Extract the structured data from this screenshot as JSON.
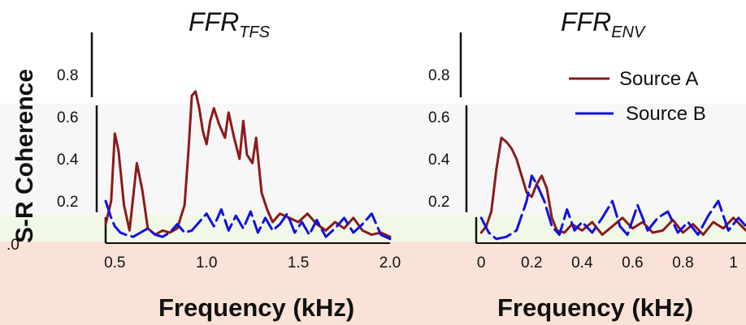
{
  "chart_data": [
    {
      "type": "line",
      "title_main": "FFR",
      "title_sub": "TFS",
      "xlabel": "Frequency (kHz)",
      "ylabel": "S-R Coherence",
      "xlim": [
        0.45,
        2.0
      ],
      "ylim": [
        0.0,
        1.0
      ],
      "x_ticks": [
        "0.5",
        "1.0",
        "1.5",
        "2.0"
      ],
      "x_tick_values": [
        0.5,
        1.0,
        1.5,
        2.0
      ],
      "y_ticks": [
        "0.8",
        "0.6",
        "0.4",
        "0.2"
      ],
      "y_tick_values": [
        0.8,
        0.6,
        0.4,
        0.2
      ],
      "series": [
        {
          "name": "Source A",
          "color": "#8b1a1a",
          "style": "solid",
          "x": [
            0.45,
            0.48,
            0.5,
            0.52,
            0.55,
            0.58,
            0.6,
            0.62,
            0.65,
            0.68,
            0.72,
            0.76,
            0.8,
            0.84,
            0.88,
            0.9,
            0.92,
            0.94,
            0.96,
            0.98,
            1.0,
            1.02,
            1.04,
            1.07,
            1.1,
            1.12,
            1.15,
            1.18,
            1.2,
            1.22,
            1.25,
            1.27,
            1.3,
            1.33,
            1.36,
            1.4,
            1.45,
            1.5,
            1.55,
            1.6,
            1.65,
            1.7,
            1.75,
            1.8,
            1.85,
            1.9,
            1.95,
            2.0
          ],
          "values": [
            0.09,
            0.2,
            0.52,
            0.44,
            0.18,
            0.06,
            0.22,
            0.38,
            0.25,
            0.07,
            0.04,
            0.06,
            0.05,
            0.07,
            0.18,
            0.42,
            0.7,
            0.72,
            0.64,
            0.53,
            0.47,
            0.58,
            0.64,
            0.56,
            0.5,
            0.62,
            0.5,
            0.4,
            0.58,
            0.42,
            0.38,
            0.5,
            0.24,
            0.16,
            0.1,
            0.14,
            0.12,
            0.1,
            0.14,
            0.09,
            0.06,
            0.1,
            0.07,
            0.12,
            0.06,
            0.04,
            0.05,
            0.03
          ]
        },
        {
          "name": "Source B",
          "color": "#1010e0",
          "style": "dashed",
          "x": [
            0.45,
            0.48,
            0.5,
            0.53,
            0.56,
            0.6,
            0.64,
            0.68,
            0.72,
            0.76,
            0.8,
            0.84,
            0.88,
            0.92,
            0.96,
            1.0,
            1.04,
            1.08,
            1.12,
            1.16,
            1.2,
            1.24,
            1.28,
            1.32,
            1.36,
            1.4,
            1.44,
            1.48,
            1.52,
            1.56,
            1.6,
            1.65,
            1.7,
            1.75,
            1.8,
            1.85,
            1.9,
            1.95,
            2.0
          ],
          "values": [
            0.2,
            0.12,
            0.08,
            0.05,
            0.04,
            0.03,
            0.05,
            0.07,
            0.04,
            0.03,
            0.05,
            0.09,
            0.05,
            0.06,
            0.1,
            0.14,
            0.08,
            0.16,
            0.06,
            0.13,
            0.07,
            0.15,
            0.05,
            0.12,
            0.06,
            0.09,
            0.14,
            0.05,
            0.1,
            0.04,
            0.11,
            0.03,
            0.07,
            0.12,
            0.05,
            0.09,
            0.14,
            0.04,
            0.02
          ]
        }
      ]
    },
    {
      "type": "line",
      "title_main": "FFR",
      "title_sub": "ENV",
      "xlabel": "Frequency (kHz)",
      "xlim": [
        -0.02,
        1.05
      ],
      "ylim": [
        0.0,
        1.0
      ],
      "x_ticks": [
        "0",
        "0.2",
        "0.4",
        "0.6",
        "0.8",
        "1"
      ],
      "x_tick_values": [
        0.0,
        0.2,
        0.4,
        0.6,
        0.8,
        1.0
      ],
      "y_ticks": [
        "0.8",
        "0.6",
        "0.4",
        "0.2"
      ],
      "y_tick_values": [
        0.8,
        0.6,
        0.4,
        0.2
      ],
      "series": [
        {
          "name": "Source A",
          "color": "#8b1a1a",
          "style": "solid",
          "x": [
            0.0,
            0.02,
            0.04,
            0.06,
            0.08,
            0.1,
            0.12,
            0.14,
            0.16,
            0.18,
            0.2,
            0.22,
            0.24,
            0.26,
            0.28,
            0.3,
            0.33,
            0.36,
            0.4,
            0.44,
            0.48,
            0.52,
            0.56,
            0.6,
            0.64,
            0.68,
            0.72,
            0.76,
            0.8,
            0.84,
            0.88,
            0.92,
            0.96,
            1.0,
            1.05
          ],
          "values": [
            0.05,
            0.08,
            0.15,
            0.35,
            0.5,
            0.48,
            0.45,
            0.4,
            0.32,
            0.24,
            0.22,
            0.28,
            0.32,
            0.26,
            0.12,
            0.06,
            0.05,
            0.09,
            0.06,
            0.1,
            0.04,
            0.08,
            0.12,
            0.07,
            0.1,
            0.05,
            0.06,
            0.11,
            0.05,
            0.09,
            0.04,
            0.1,
            0.07,
            0.12,
            0.06
          ]
        },
        {
          "name": "Source B",
          "color": "#1010e0",
          "style": "dashed",
          "x": [
            0.0,
            0.03,
            0.06,
            0.1,
            0.14,
            0.18,
            0.2,
            0.22,
            0.25,
            0.28,
            0.31,
            0.34,
            0.37,
            0.4,
            0.44,
            0.48,
            0.52,
            0.55,
            0.58,
            0.62,
            0.66,
            0.7,
            0.74,
            0.78,
            0.82,
            0.86,
            0.9,
            0.94,
            0.98,
            1.02,
            1.05
          ],
          "values": [
            0.12,
            0.05,
            0.02,
            0.03,
            0.06,
            0.2,
            0.32,
            0.28,
            0.2,
            0.08,
            0.04,
            0.16,
            0.06,
            0.1,
            0.05,
            0.12,
            0.2,
            0.08,
            0.04,
            0.18,
            0.06,
            0.12,
            0.15,
            0.05,
            0.1,
            0.04,
            0.13,
            0.2,
            0.06,
            0.12,
            0.08
          ]
        }
      ]
    }
  ],
  "legend": [
    {
      "label": "Source A",
      "color": "#8b1a1a"
    },
    {
      "label": "Source B",
      "color": "#1010e0"
    }
  ],
  "left_edge_tick": ".0"
}
